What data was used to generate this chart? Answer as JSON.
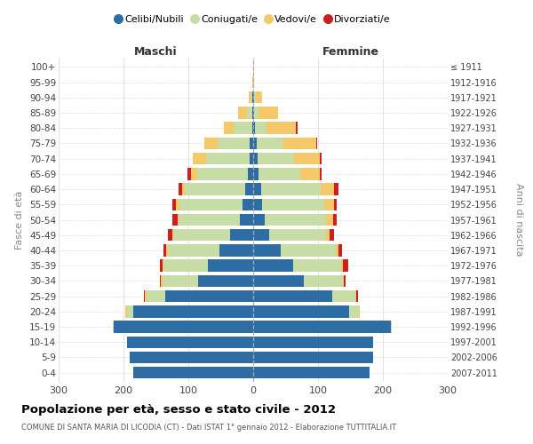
{
  "age_groups": [
    "100+",
    "95-99",
    "90-94",
    "85-89",
    "80-84",
    "75-79",
    "70-74",
    "65-69",
    "60-64",
    "55-59",
    "50-54",
    "45-49",
    "40-44",
    "35-39",
    "30-34",
    "25-29",
    "20-24",
    "15-19",
    "10-14",
    "5-9",
    "0-4"
  ],
  "birth_years": [
    "≤ 1911",
    "1912-1916",
    "1917-1921",
    "1922-1926",
    "1927-1931",
    "1932-1936",
    "1937-1941",
    "1942-1946",
    "1947-1951",
    "1952-1956",
    "1957-1961",
    "1962-1966",
    "1967-1971",
    "1972-1976",
    "1977-1981",
    "1982-1986",
    "1987-1991",
    "1992-1996",
    "1997-2001",
    "2002-2006",
    "2007-2011"
  ],
  "colors": {
    "celibi": "#2E6DA4",
    "coniugati": "#C8DCA5",
    "vedovi": "#F5C96A",
    "divorziati": "#CC2020"
  },
  "male": {
    "celibi": [
      0,
      0,
      1,
      1,
      2,
      5,
      5,
      8,
      13,
      16,
      20,
      35,
      52,
      70,
      85,
      135,
      185,
      215,
      195,
      190,
      185
    ],
    "coniugati": [
      0,
      0,
      2,
      8,
      28,
      50,
      68,
      78,
      92,
      98,
      95,
      88,
      80,
      68,
      55,
      30,
      10,
      2,
      0,
      0,
      0
    ],
    "vedovi": [
      0,
      1,
      4,
      14,
      15,
      20,
      20,
      10,
      5,
      5,
      2,
      2,
      2,
      2,
      2,
      2,
      2,
      0,
      0,
      0,
      0
    ],
    "divorziati": [
      0,
      0,
      0,
      0,
      0,
      0,
      0,
      5,
      5,
      6,
      7,
      6,
      4,
      4,
      2,
      2,
      0,
      0,
      0,
      0,
      0
    ]
  },
  "female": {
    "nubili": [
      0,
      0,
      2,
      2,
      3,
      5,
      7,
      8,
      12,
      14,
      18,
      25,
      42,
      62,
      78,
      122,
      148,
      212,
      185,
      185,
      180
    ],
    "coniugate": [
      0,
      0,
      2,
      6,
      18,
      42,
      56,
      65,
      92,
      95,
      95,
      88,
      85,
      74,
      60,
      35,
      15,
      2,
      0,
      0,
      0
    ],
    "vedove": [
      1,
      2,
      10,
      30,
      45,
      50,
      40,
      30,
      20,
      15,
      10,
      5,
      5,
      3,
      2,
      2,
      2,
      0,
      0,
      0,
      0
    ],
    "divorziate": [
      0,
      0,
      0,
      0,
      2,
      2,
      2,
      2,
      8,
      5,
      6,
      6,
      5,
      8,
      3,
      2,
      0,
      0,
      0,
      0,
      0
    ]
  },
  "xlim": 300,
  "title": "Popolazione per età, sesso e stato civile - 2012",
  "subtitle": "COMUNE DI SANTA MARIA DI LICODIA (CT) - Dati ISTAT 1° gennaio 2012 - Elaborazione TUTTITALIA.IT",
  "ylabel_left": "Fasce di età",
  "ylabel_right": "Anni di nascita",
  "legend_labels": [
    "Celibi/Nubili",
    "Coniugati/e",
    "Vedovi/e",
    "Divorziati/e"
  ],
  "maschi_label": "Maschi",
  "femmine_label": "Femmine",
  "xtick_values": [
    -300,
    -200,
    -100,
    0,
    100,
    200,
    300
  ],
  "xtick_labels": [
    "300",
    "200",
    "100",
    "0",
    "100",
    "200",
    "300"
  ]
}
